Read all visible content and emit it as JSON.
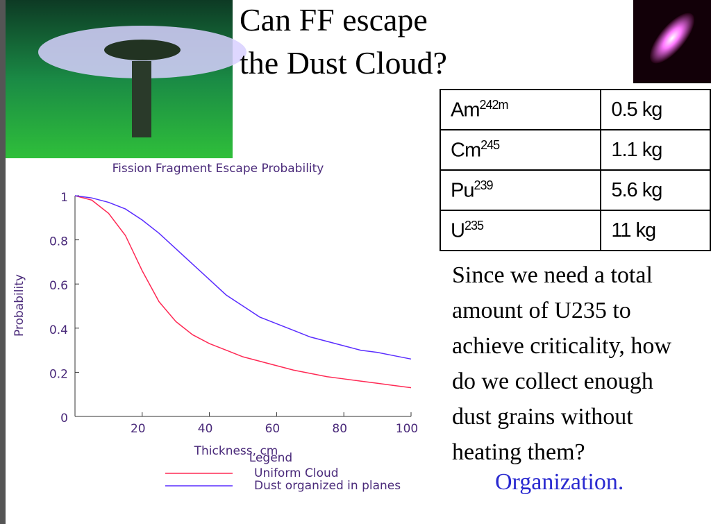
{
  "title_lines": [
    "Can FF escape",
    "the Dust Cloud?"
  ],
  "table": {
    "rows": [
      {
        "element": "Am",
        "isotope": "242m",
        "mass": "0.5 kg"
      },
      {
        "element": "Cm",
        "isotope": "245",
        "mass": "1.1 kg"
      },
      {
        "element": "Pu",
        "isotope": "239",
        "mass": "5.6 kg"
      },
      {
        "element": "U",
        "isotope": "235",
        "mass": "11 kg"
      }
    ]
  },
  "paragraph": [
    "Since we need a total",
    "amount of U235 to",
    "achieve criticality, how",
    "do we collect enough",
    "dust grains without",
    "heating them?"
  ],
  "answer": "Organization.",
  "chart_data": {
    "type": "line",
    "title": "Fission Fragment Escape Probability",
    "x_label": "Thickness, cm",
    "y_label": "Probability",
    "legend_title": "Legend",
    "x": [
      0,
      5,
      10,
      15,
      20,
      25,
      30,
      35,
      40,
      45,
      50,
      55,
      60,
      65,
      70,
      75,
      80,
      85,
      90,
      95,
      100
    ],
    "series": [
      {
        "name": "Uniform Cloud",
        "color": "#ff2a55",
        "values": [
          1,
          0.98,
          0.92,
          0.82,
          0.66,
          0.52,
          0.43,
          0.37,
          0.33,
          0.3,
          0.27,
          0.25,
          0.23,
          0.21,
          0.195,
          0.18,
          0.17,
          0.16,
          0.15,
          0.14,
          0.13
        ]
      },
      {
        "name": "Dust organized in planes",
        "color": "#5a2dff",
        "values": [
          1,
          0.99,
          0.97,
          0.94,
          0.89,
          0.83,
          0.76,
          0.69,
          0.62,
          0.55,
          0.5,
          0.45,
          0.42,
          0.39,
          0.36,
          0.34,
          0.32,
          0.3,
          0.29,
          0.275,
          0.26
        ]
      }
    ],
    "xlim": [
      0,
      100
    ],
    "ylim": [
      0,
      1
    ],
    "xticks": [
      0,
      20,
      40,
      60,
      80,
      100
    ],
    "yticks": [
      0,
      0.2,
      0.4,
      0.6,
      0.8,
      1
    ]
  }
}
